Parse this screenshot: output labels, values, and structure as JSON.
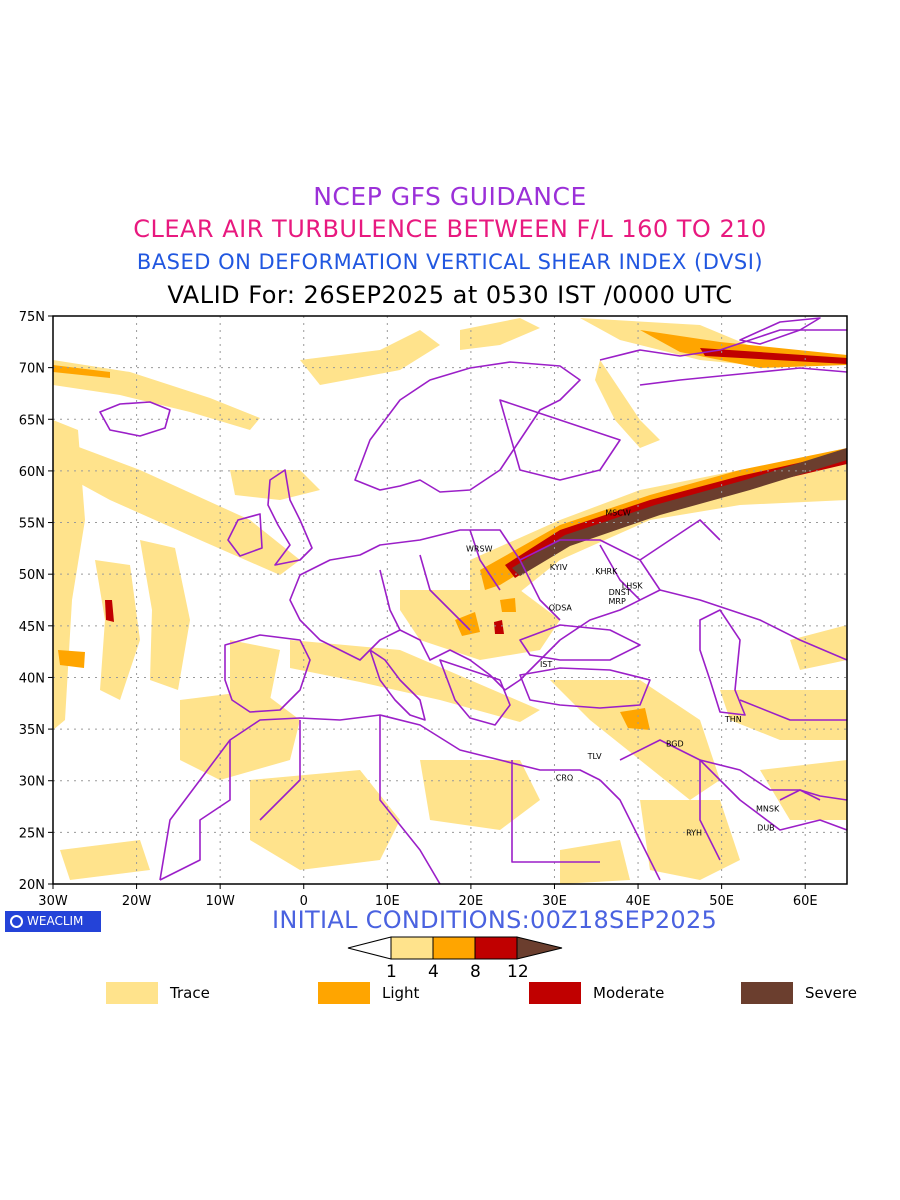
{
  "titles": {
    "line1": "NCEP GFS GUIDANCE",
    "line2": "CLEAR AIR TURBULENCE BETWEEN F/L 160 TO 210",
    "line3": "BASED ON DEFORMATION VERTICAL SHEAR INDEX (DVSI)",
    "line4": "VALID For: 26SEP2025 at 0530 IST /0000 UTC"
  },
  "axes": {
    "lat_labels": [
      "75N",
      "70N",
      "65N",
      "60N",
      "55N",
      "50N",
      "45N",
      "40N",
      "35N",
      "30N",
      "25N",
      "20N"
    ],
    "lon_labels": [
      "30W",
      "20W",
      "10W",
      "0",
      "10E",
      "20E",
      "30E",
      "40E",
      "50E",
      "60E"
    ]
  },
  "cities": [
    {
      "name": "MSCW",
      "lon": 37.6,
      "lat": 55.7
    },
    {
      "name": "WRSW",
      "lon": 21.0,
      "lat": 52.2
    },
    {
      "name": "KYIV",
      "lon": 30.5,
      "lat": 50.4
    },
    {
      "name": "KHRK",
      "lon": 36.2,
      "lat": 50.0
    },
    {
      "name": "LHSK",
      "lon": 39.3,
      "lat": 48.6
    },
    {
      "name": "DNST",
      "lon": 37.8,
      "lat": 48.0
    },
    {
      "name": "MRP",
      "lon": 37.5,
      "lat": 47.1
    },
    {
      "name": "ODSA",
      "lon": 30.7,
      "lat": 46.5
    },
    {
      "name": "IST",
      "lon": 29.0,
      "lat": 41.0
    },
    {
      "name": "THN",
      "lon": 51.4,
      "lat": 35.7
    },
    {
      "name": "BGD",
      "lon": 44.4,
      "lat": 33.3
    },
    {
      "name": "TLV",
      "lon": 34.8,
      "lat": 32.1
    },
    {
      "name": "CRO",
      "lon": 31.2,
      "lat": 30.0
    },
    {
      "name": "MNSK",
      "lon": 55.5,
      "lat": 27.0
    },
    {
      "name": "DUB",
      "lon": 55.3,
      "lat": 25.2
    },
    {
      "name": "RYH",
      "lon": 46.7,
      "lat": 24.7
    }
  ],
  "badge": "WEACLIM",
  "initial_conditions": "INITIAL CONDITIONS:00Z18SEP2025",
  "colorbar": {
    "thresholds": [
      "1",
      "4",
      "8",
      "12"
    ],
    "colors": [
      "#ffffff",
      "#ffe38c",
      "#ffa500",
      "#c00000",
      "#6b3e2e"
    ]
  },
  "legend": [
    {
      "label": "Trace",
      "color": "#ffe38c"
    },
    {
      "label": "Light",
      "color": "#ffa500"
    },
    {
      "label": "Moderate",
      "color": "#c00000"
    },
    {
      "label": "Severe",
      "color": "#6b3e2e"
    }
  ],
  "map_colors": {
    "border": "#9b1fc8",
    "grid": "#9a9a9a",
    "frame": "#000000"
  }
}
